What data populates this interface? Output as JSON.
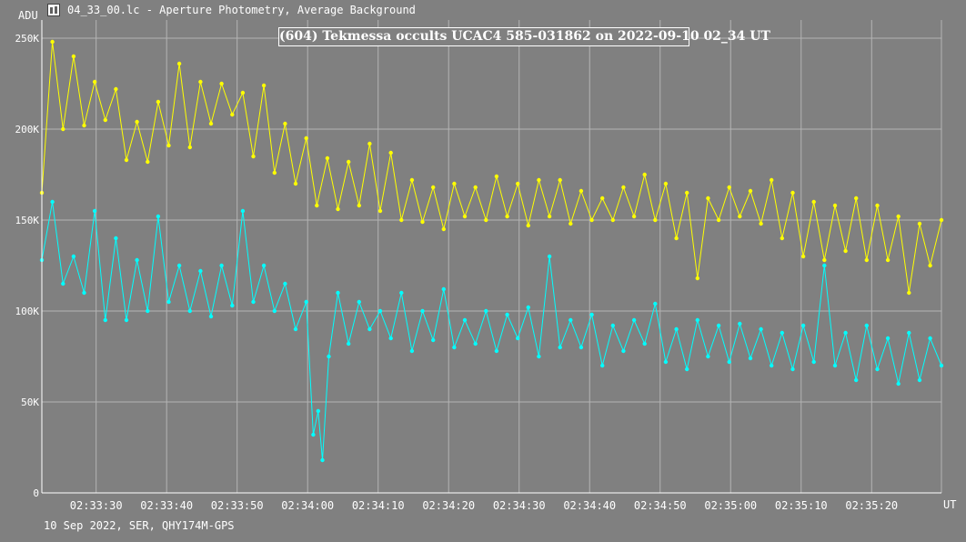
{
  "window": {
    "title": "04_33_00.lc - Aperture Photometry, Average Background",
    "footer": "10 Sep 2022, SER, QHY174M-GPS"
  },
  "chart_data": {
    "type": "line",
    "title": "(604) Tekmessa occults UCAC4 585-031862 on 2022-09-10 02_34 UT",
    "ylabel": "ADU",
    "xlabel": "UT",
    "ylim": [
      0,
      260000
    ],
    "xlim": [
      "02:33:22.3",
      "02:35:29.9"
    ],
    "yticks": [
      {
        "value": 0,
        "label": "0"
      },
      {
        "value": 50000,
        "label": "50K"
      },
      {
        "value": 100000,
        "label": "100K"
      },
      {
        "value": 150000,
        "label": "150K"
      },
      {
        "value": 200000,
        "label": "200K"
      },
      {
        "value": 250000,
        "label": "250K"
      }
    ],
    "xticks": [
      "02:33:30",
      "02:33:40",
      "02:33:50",
      "02:34:00",
      "02:34:10",
      "02:34:20",
      "02:34:30",
      "02:34:40",
      "02:34:50",
      "02:35:00",
      "02:35:10",
      "02:35:20"
    ],
    "grid": true,
    "series": [
      {
        "color": "#ffff00",
        "points": [
          [
            "02:33:22.3",
            165000
          ],
          [
            "02:33:23.8",
            248000
          ],
          [
            "02:33:25.3",
            200000
          ],
          [
            "02:33:26.8",
            240000
          ],
          [
            "02:33:28.3",
            202000
          ],
          [
            "02:33:29.8",
            226000
          ],
          [
            "02:33:31.3",
            205000
          ],
          [
            "02:33:32.8",
            222000
          ],
          [
            "02:33:34.3",
            183000
          ],
          [
            "02:33:35.8",
            204000
          ],
          [
            "02:33:37.3",
            182000
          ],
          [
            "02:33:38.8",
            215000
          ],
          [
            "02:33:40.3",
            191000
          ],
          [
            "02:33:41.8",
            236000
          ],
          [
            "02:33:43.3",
            190000
          ],
          [
            "02:33:44.8",
            226000
          ],
          [
            "02:33:46.3",
            203000
          ],
          [
            "02:33:47.8",
            225000
          ],
          [
            "02:33:49.3",
            208000
          ],
          [
            "02:33:50.8",
            220000
          ],
          [
            "02:33:52.3",
            185000
          ],
          [
            "02:33:53.8",
            224000
          ],
          [
            "02:33:55.3",
            176000
          ],
          [
            "02:33:56.8",
            203000
          ],
          [
            "02:33:58.3",
            170000
          ],
          [
            "02:33:59.8",
            195000
          ],
          [
            "02:34:01.3",
            158000
          ],
          [
            "02:34:02.8",
            184000
          ],
          [
            "02:34:04.3",
            156000
          ],
          [
            "02:34:05.8",
            182000
          ],
          [
            "02:34:07.3",
            158000
          ],
          [
            "02:34:08.8",
            192000
          ],
          [
            "02:34:10.3",
            155000
          ],
          [
            "02:34:11.8",
            187000
          ],
          [
            "02:34:13.3",
            150000
          ],
          [
            "02:34:14.8",
            172000
          ],
          [
            "02:34:16.3",
            149000
          ],
          [
            "02:34:17.8",
            168000
          ],
          [
            "02:34:19.3",
            145000
          ],
          [
            "02:34:20.8",
            170000
          ],
          [
            "02:34:22.3",
            152000
          ],
          [
            "02:34:23.8",
            168000
          ],
          [
            "02:34:25.3",
            150000
          ],
          [
            "02:34:26.8",
            174000
          ],
          [
            "02:34:28.3",
            152000
          ],
          [
            "02:34:29.8",
            170000
          ],
          [
            "02:34:31.3",
            147000
          ],
          [
            "02:34:32.8",
            172000
          ],
          [
            "02:34:34.3",
            152000
          ],
          [
            "02:34:35.8",
            172000
          ],
          [
            "02:34:37.3",
            148000
          ],
          [
            "02:34:38.8",
            166000
          ],
          [
            "02:34:40.3",
            150000
          ],
          [
            "02:34:41.8",
            162000
          ],
          [
            "02:34:43.3",
            150000
          ],
          [
            "02:34:44.8",
            168000
          ],
          [
            "02:34:46.3",
            152000
          ],
          [
            "02:34:47.8",
            175000
          ],
          [
            "02:34:49.3",
            150000
          ],
          [
            "02:34:50.8",
            170000
          ],
          [
            "02:34:52.3",
            140000
          ],
          [
            "02:34:53.8",
            165000
          ],
          [
            "02:34:55.3",
            118000
          ],
          [
            "02:34:56.8",
            162000
          ],
          [
            "02:34:58.3",
            150000
          ],
          [
            "02:34:59.8",
            168000
          ],
          [
            "02:35:01.3",
            152000
          ],
          [
            "02:35:02.8",
            166000
          ],
          [
            "02:35:04.3",
            148000
          ],
          [
            "02:35:05.8",
            172000
          ],
          [
            "02:35:07.3",
            140000
          ],
          [
            "02:35:08.8",
            165000
          ],
          [
            "02:35:10.3",
            130000
          ],
          [
            "02:35:11.8",
            160000
          ],
          [
            "02:35:13.3",
            128000
          ],
          [
            "02:35:14.8",
            158000
          ],
          [
            "02:35:16.3",
            133000
          ],
          [
            "02:35:17.8",
            162000
          ],
          [
            "02:35:19.3",
            128000
          ],
          [
            "02:35:20.8",
            158000
          ],
          [
            "02:35:22.3",
            128000
          ],
          [
            "02:35:23.8",
            152000
          ],
          [
            "02:35:25.3",
            110000
          ],
          [
            "02:35:26.8",
            148000
          ],
          [
            "02:35:28.3",
            125000
          ],
          [
            "02:35:29.9",
            150000
          ]
        ]
      },
      {
        "color": "#00ffff",
        "points": [
          [
            "02:33:22.3",
            128000
          ],
          [
            "02:33:23.8",
            160000
          ],
          [
            "02:33:25.3",
            115000
          ],
          [
            "02:33:26.8",
            130000
          ],
          [
            "02:33:28.3",
            110000
          ],
          [
            "02:33:29.8",
            155000
          ],
          [
            "02:33:31.3",
            95000
          ],
          [
            "02:33:32.8",
            140000
          ],
          [
            "02:33:34.3",
            95000
          ],
          [
            "02:33:35.8",
            128000
          ],
          [
            "02:33:37.3",
            100000
          ],
          [
            "02:33:38.8",
            152000
          ],
          [
            "02:33:40.3",
            105000
          ],
          [
            "02:33:41.8",
            125000
          ],
          [
            "02:33:43.3",
            100000
          ],
          [
            "02:33:44.8",
            122000
          ],
          [
            "02:33:46.3",
            97000
          ],
          [
            "02:33:47.8",
            125000
          ],
          [
            "02:33:49.3",
            103000
          ],
          [
            "02:33:50.8",
            155000
          ],
          [
            "02:33:52.3",
            105000
          ],
          [
            "02:33:53.8",
            125000
          ],
          [
            "02:33:55.3",
            100000
          ],
          [
            "02:33:56.8",
            115000
          ],
          [
            "02:33:58.3",
            90000
          ],
          [
            "02:33:59.8",
            105000
          ],
          [
            "02:34:00.8",
            32000
          ],
          [
            "02:34:01.5",
            45000
          ],
          [
            "02:34:02.1",
            18000
          ],
          [
            "02:34:03.0",
            75000
          ],
          [
            "02:34:04.3",
            110000
          ],
          [
            "02:34:05.8",
            82000
          ],
          [
            "02:34:07.3",
            105000
          ],
          [
            "02:34:08.8",
            90000
          ],
          [
            "02:34:10.3",
            100000
          ],
          [
            "02:34:11.8",
            85000
          ],
          [
            "02:34:13.3",
            110000
          ],
          [
            "02:34:14.8",
            78000
          ],
          [
            "02:34:16.3",
            100000
          ],
          [
            "02:34:17.8",
            84000
          ],
          [
            "02:34:19.3",
            112000
          ],
          [
            "02:34:20.8",
            80000
          ],
          [
            "02:34:22.3",
            95000
          ],
          [
            "02:34:23.8",
            82000
          ],
          [
            "02:34:25.3",
            100000
          ],
          [
            "02:34:26.8",
            78000
          ],
          [
            "02:34:28.3",
            98000
          ],
          [
            "02:34:29.8",
            85000
          ],
          [
            "02:34:31.3",
            102000
          ],
          [
            "02:34:32.8",
            75000
          ],
          [
            "02:34:34.3",
            130000
          ],
          [
            "02:34:35.8",
            80000
          ],
          [
            "02:34:37.3",
            95000
          ],
          [
            "02:34:38.8",
            80000
          ],
          [
            "02:34:40.3",
            98000
          ],
          [
            "02:34:41.8",
            70000
          ],
          [
            "02:34:43.3",
            92000
          ],
          [
            "02:34:44.8",
            78000
          ],
          [
            "02:34:46.3",
            95000
          ],
          [
            "02:34:47.8",
            82000
          ],
          [
            "02:34:49.3",
            104000
          ],
          [
            "02:34:50.8",
            72000
          ],
          [
            "02:34:52.3",
            90000
          ],
          [
            "02:34:53.8",
            68000
          ],
          [
            "02:34:55.3",
            95000
          ],
          [
            "02:34:56.8",
            75000
          ],
          [
            "02:34:58.3",
            92000
          ],
          [
            "02:34:59.8",
            72000
          ],
          [
            "02:35:01.3",
            93000
          ],
          [
            "02:35:02.8",
            74000
          ],
          [
            "02:35:04.3",
            90000
          ],
          [
            "02:35:05.8",
            70000
          ],
          [
            "02:35:07.3",
            88000
          ],
          [
            "02:35:08.8",
            68000
          ],
          [
            "02:35:10.3",
            92000
          ],
          [
            "02:35:11.8",
            72000
          ],
          [
            "02:35:13.3",
            125000
          ],
          [
            "02:35:14.8",
            70000
          ],
          [
            "02:35:16.3",
            88000
          ],
          [
            "02:35:17.8",
            62000
          ],
          [
            "02:35:19.3",
            92000
          ],
          [
            "02:35:20.8",
            68000
          ],
          [
            "02:35:22.3",
            85000
          ],
          [
            "02:35:23.8",
            60000
          ],
          [
            "02:35:25.3",
            88000
          ],
          [
            "02:35:26.8",
            62000
          ],
          [
            "02:35:28.3",
            85000
          ],
          [
            "02:35:29.9",
            70000
          ]
        ]
      }
    ]
  }
}
